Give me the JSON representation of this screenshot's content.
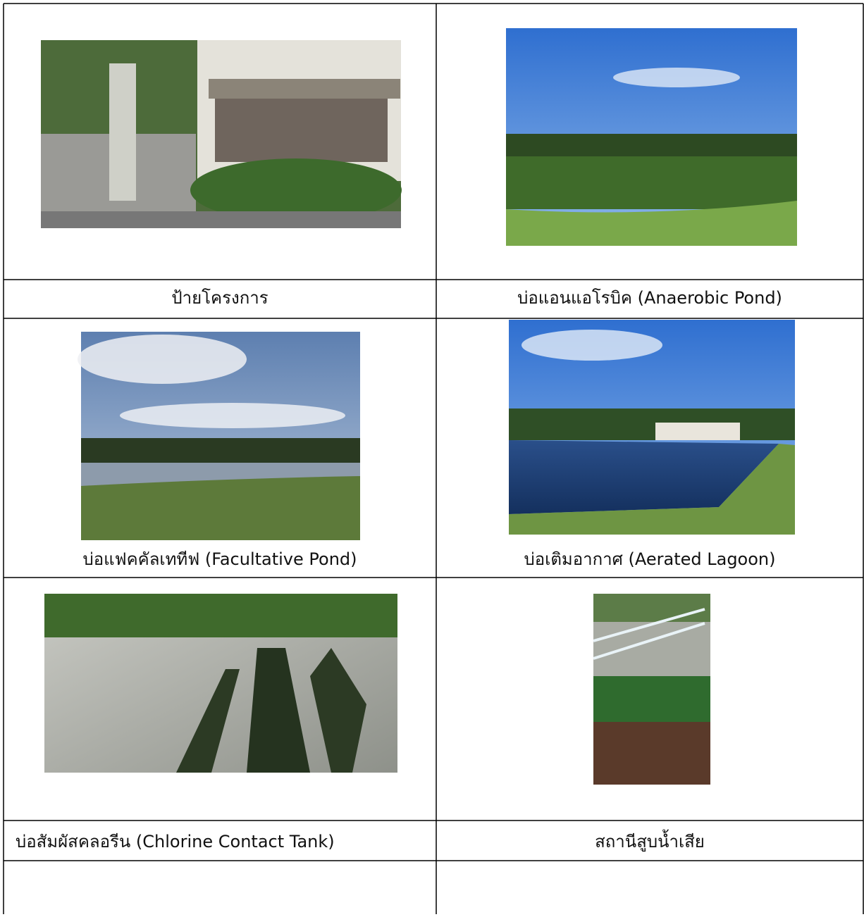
{
  "table": {
    "rows": [
      [
        "ป้ายโครงการ",
        "บ่อแอนแอโรบิค (Anaerobic Pond)"
      ],
      [
        "บ่อแฟคคัลเททีฟ (Facultative Pond)",
        "บ่อเติมอากาศ (Aerated Lagoon)"
      ],
      [
        "บ่อสัมผัสคลอรีน (Chlorine Contact Tank)",
        "สถานีสูบน้ำเสีย"
      ]
    ]
  }
}
